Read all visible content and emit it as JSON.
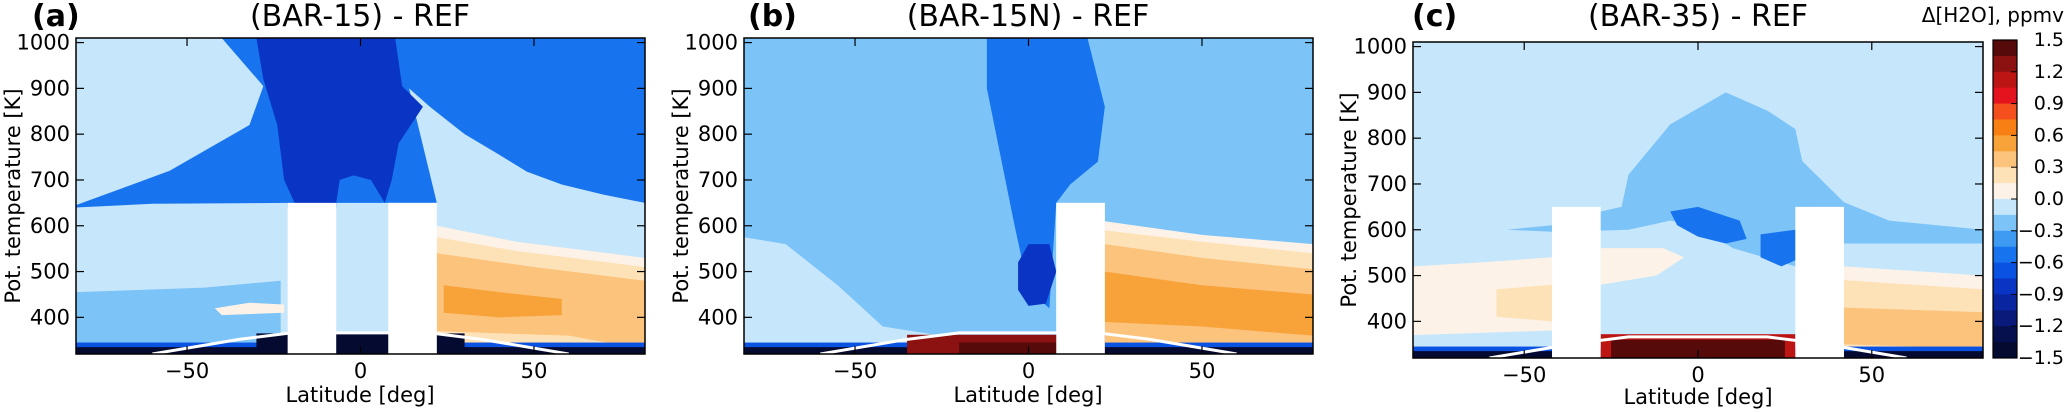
{
  "chart_data": [
    {
      "type": "heatmap",
      "letter": "(a)",
      "title": "(BAR-15) - REF",
      "xlabel": "Latitude [deg]",
      "ylabel": "Pot. temperature [K]",
      "xlim": [
        -82,
        82
      ],
      "ylim": [
        320,
        1010
      ],
      "xticks": [
        -50,
        0,
        50
      ],
      "xticklabels": [
        "−50",
        "0",
        "50"
      ],
      "yticks": [
        400,
        500,
        600,
        700,
        800,
        900,
        1000
      ],
      "yticklabels": [
        "400",
        "500",
        "600",
        "700",
        "800",
        "900",
        "1000"
      ],
      "masked_regions": [
        {
          "lat": [
            -21,
            -7
          ],
          "theta_max": 650
        },
        {
          "lat": [
            8,
            22
          ],
          "theta_max": 650
        }
      ],
      "contours": [
        {
          "level": -0.3,
          "points": [
            [
              -82,
              455
            ],
            [
              -45,
              465
            ],
            [
              -23,
              480
            ],
            [
              -23,
              320
            ],
            [
              -82,
              320
            ]
          ]
        },
        {
          "level": -0.3,
          "points": [
            [
              22,
              520
            ],
            [
              45,
              505
            ],
            [
              65,
              495
            ],
            [
              82,
              488
            ],
            [
              82,
              320
            ],
            [
              22,
              320
            ]
          ]
        },
        {
          "level": -0.6,
          "points": [
            [
              -82,
              645
            ],
            [
              -55,
              720
            ],
            [
              -32,
              820
            ],
            [
              -28,
              905
            ],
            [
              -40,
              1010
            ],
            [
              82,
              1010
            ],
            [
              82,
              650
            ],
            [
              70,
              668
            ],
            [
              58,
              690
            ],
            [
              48,
              718
            ],
            [
              40,
              755
            ],
            [
              30,
              800
            ],
            [
              20,
              860
            ],
            [
              14,
              900
            ],
            [
              22,
              650
            ],
            [
              -7,
              650
            ],
            [
              -7,
              640
            ],
            [
              -21,
              640
            ],
            [
              -21,
              650
            ],
            [
              -60,
              648
            ],
            [
              -82,
              640
            ]
          ]
        },
        {
          "level": -0.9,
          "points": [
            [
              -30,
              1010
            ],
            [
              -28,
              920
            ],
            [
              -24,
              820
            ],
            [
              -22,
              700
            ],
            [
              -19,
              650
            ],
            [
              -7,
              650
            ],
            [
              -6,
              700
            ],
            [
              -2,
              710
            ],
            [
              3,
              700
            ],
            [
              7,
              650
            ],
            [
              9,
              700
            ],
            [
              11,
              780
            ],
            [
              18,
              860
            ],
            [
              12,
              905
            ],
            [
              10,
              1010
            ]
          ]
        }
      ],
      "positive_contours": [
        {
          "level": 0.0,
          "points": [
            [
              22,
              600
            ],
            [
              45,
              565
            ],
            [
              82,
              530
            ],
            [
              82,
              320
            ],
            [
              22,
              320
            ]
          ]
        },
        {
          "level": 0.15,
          "points": [
            [
              22,
              575
            ],
            [
              45,
              545
            ],
            [
              82,
              510
            ],
            [
              82,
              320
            ],
            [
              22,
              320
            ]
          ]
        },
        {
          "level": 0.3,
          "points": [
            [
              22,
              540
            ],
            [
              50,
              510
            ],
            [
              82,
              480
            ],
            [
              82,
              330
            ],
            [
              60,
              360
            ],
            [
              22,
              370
            ]
          ]
        },
        {
          "level": 0.45,
          "points": [
            [
              24,
              470
            ],
            [
              40,
              455
            ],
            [
              58,
              440
            ],
            [
              58,
              405
            ],
            [
              40,
              400
            ],
            [
              24,
              410
            ]
          ]
        },
        {
          "level": 0.0,
          "points": [
            [
              -42,
              420
            ],
            [
              -32,
              432
            ],
            [
              -22,
              428
            ],
            [
              -22,
              410
            ],
            [
              -40,
              405
            ]
          ]
        }
      ],
      "surface": "dark-blue",
      "colors": {
        "background": "#c6e6fb"
      }
    },
    {
      "type": "heatmap",
      "letter": "(b)",
      "title": "(BAR-15N) - REF",
      "xlabel": "Latitude [deg]",
      "ylabel": "Pot. temperature [K]",
      "xlim": [
        -82,
        82
      ],
      "ylim": [
        320,
        1010
      ],
      "xticks": [
        -50,
        0,
        50
      ],
      "xticklabels": [
        "−50",
        "0",
        "50"
      ],
      "yticks": [
        400,
        500,
        600,
        700,
        800,
        900,
        1000
      ],
      "yticklabels": [
        "400",
        "500",
        "600",
        "700",
        "800",
        "900",
        "1000"
      ],
      "masked_regions": [
        {
          "lat": [
            8,
            22
          ],
          "theta_max": 650
        }
      ],
      "contours": [
        {
          "level": -0.3,
          "points": [
            [
              -82,
              575
            ],
            [
              -70,
              560
            ],
            [
              -55,
              470
            ],
            [
              -42,
              380
            ],
            [
              -25,
              360
            ],
            [
              8,
              360
            ],
            [
              8,
              650
            ],
            [
              22,
              650
            ],
            [
              22,
              565
            ],
            [
              45,
              560
            ],
            [
              82,
              545
            ],
            [
              82,
              1010
            ],
            [
              -82,
              1010
            ]
          ]
        },
        {
          "level": -0.6,
          "points": [
            [
              -12,
              1010
            ],
            [
              -12,
              900
            ],
            [
              -8,
              750
            ],
            [
              -4,
              600
            ],
            [
              0,
              460
            ],
            [
              6,
              420
            ],
            [
              8,
              650
            ],
            [
              12,
              690
            ],
            [
              20,
              740
            ],
            [
              22,
              860
            ],
            [
              17,
              1010
            ]
          ]
        },
        {
          "level": -0.9,
          "points": [
            [
              -3,
              520
            ],
            [
              0,
              560
            ],
            [
              6,
              560
            ],
            [
              8,
              500
            ],
            [
              5,
              430
            ],
            [
              0,
              425
            ],
            [
              -3,
              460
            ]
          ]
        }
      ],
      "positive_contours": [
        {
          "level": 0.0,
          "points": [
            [
              22,
              610
            ],
            [
              50,
              580
            ],
            [
              82,
              560
            ],
            [
              82,
              320
            ],
            [
              22,
              320
            ]
          ]
        },
        {
          "level": 0.15,
          "points": [
            [
              22,
              590
            ],
            [
              50,
              565
            ],
            [
              82,
              540
            ],
            [
              82,
              320
            ],
            [
              22,
              320
            ]
          ]
        },
        {
          "level": 0.3,
          "points": [
            [
              22,
              560
            ],
            [
              50,
              530
            ],
            [
              82,
              505
            ],
            [
              82,
              330
            ],
            [
              22,
              330
            ]
          ]
        },
        {
          "level": 0.45,
          "points": [
            [
              22,
              500
            ],
            [
              50,
              470
            ],
            [
              82,
              450
            ],
            [
              82,
              360
            ],
            [
              50,
              380
            ],
            [
              22,
              390
            ]
          ]
        }
      ],
      "surface": "dark-red-equator",
      "colors": {
        "background": "#c6e6fb"
      }
    },
    {
      "type": "heatmap",
      "letter": "(c)",
      "title": "(BAR-35) - REF",
      "xlabel": "Latitude [deg]",
      "ylabel": "Pot. temperature [K]",
      "xlim": [
        -82,
        82
      ],
      "ylim": [
        320,
        1010
      ],
      "xticks": [
        -50,
        0,
        50
      ],
      "xticklabels": [
        "−50",
        "0",
        "50"
      ],
      "yticks": [
        400,
        500,
        600,
        700,
        800,
        900,
        1000
      ],
      "yticklabels": [
        "400",
        "500",
        "600",
        "700",
        "800",
        "900",
        "1000"
      ],
      "masked_regions": [
        {
          "lat": [
            -42,
            -28
          ],
          "theta_max": 650
        },
        {
          "lat": [
            28,
            42
          ],
          "theta_max": 650
        }
      ],
      "contours": [
        {
          "level": -0.3,
          "points": [
            [
              -55,
              600
            ],
            [
              -42,
              610
            ],
            [
              -28,
              640
            ],
            [
              -22,
              650
            ],
            [
              -20,
              720
            ],
            [
              -8,
              830
            ],
            [
              8,
              900
            ],
            [
              20,
              860
            ],
            [
              28,
              820
            ],
            [
              30,
              750
            ],
            [
              42,
              660
            ],
            [
              55,
              620
            ],
            [
              82,
              600
            ],
            [
              82,
              570
            ],
            [
              42,
              570
            ],
            [
              28,
              520
            ],
            [
              10,
              560
            ],
            [
              0,
              610
            ],
            [
              -8,
              620
            ],
            [
              -20,
              600
            ],
            [
              -40,
              595
            ]
          ]
        },
        {
          "level": -0.6,
          "points": [
            [
              -8,
              640
            ],
            [
              0,
              650
            ],
            [
              12,
              620
            ],
            [
              14,
              580
            ],
            [
              8,
              570
            ],
            [
              0,
              585
            ],
            [
              -6,
              610
            ]
          ]
        },
        {
          "level": -0.6,
          "points": [
            [
              18,
              590
            ],
            [
              28,
              600
            ],
            [
              30,
              540
            ],
            [
              24,
              520
            ],
            [
              18,
              540
            ]
          ]
        }
      ],
      "positive_contours": [
        {
          "level": 0.0,
          "points": [
            [
              -82,
              520
            ],
            [
              -60,
              530
            ],
            [
              -42,
              540
            ],
            [
              -42,
              380
            ],
            [
              -82,
              370
            ]
          ]
        },
        {
          "level": 0.0,
          "points": [
            [
              -28,
              560
            ],
            [
              -10,
              560
            ],
            [
              -4,
              540
            ],
            [
              -12,
              500
            ],
            [
              -28,
              480
            ]
          ]
        },
        {
          "level": 0.15,
          "points": [
            [
              -58,
              470
            ],
            [
              -42,
              480
            ],
            [
              -42,
              400
            ],
            [
              -58,
              410
            ]
          ]
        },
        {
          "level": 0.0,
          "points": [
            [
              42,
              520
            ],
            [
              82,
              500
            ],
            [
              82,
              330
            ],
            [
              42,
              330
            ]
          ]
        },
        {
          "level": 0.15,
          "points": [
            [
              42,
              490
            ],
            [
              82,
              470
            ],
            [
              82,
              335
            ],
            [
              42,
              345
            ]
          ]
        },
        {
          "level": 0.3,
          "points": [
            [
              42,
              430
            ],
            [
              82,
              420
            ],
            [
              82,
              340
            ],
            [
              42,
              350
            ]
          ]
        }
      ],
      "surface": "dark-red-equator-wide",
      "colors": {
        "background": "#c6e6fb"
      }
    }
  ],
  "colorbar": {
    "title": "Δ[H2O], ppmv",
    "ticks": [
      "1.5",
      "1.2",
      "0.9",
      "0.6",
      "0.3",
      "0.0",
      "−0.3",
      "−0.6",
      "−0.9",
      "−1.2",
      "−1.5"
    ],
    "bands": [
      {
        "level": 1.35,
        "color": "#560a0a"
      },
      {
        "level": 1.2,
        "color": "#8c1212"
      },
      {
        "level": 1.05,
        "color": "#bd1414"
      },
      {
        "level": 0.9,
        "color": "#e4141e"
      },
      {
        "level": 0.75,
        "color": "#f4501e"
      },
      {
        "level": 0.6,
        "color": "#f77f14"
      },
      {
        "level": 0.45,
        "color": "#f8a23a"
      },
      {
        "level": 0.3,
        "color": "#fcc37c"
      },
      {
        "level": 0.15,
        "color": "#fde2b8"
      },
      {
        "level": 0.0,
        "color": "#fdf2e8"
      },
      {
        "level": -0.15,
        "color": "#c6e6fb"
      },
      {
        "level": -0.3,
        "color": "#7cc3f7"
      },
      {
        "level": -0.45,
        "color": "#3f9bf2"
      },
      {
        "level": -0.6,
        "color": "#1874ee"
      },
      {
        "level": -0.75,
        "color": "#0a52e2"
      },
      {
        "level": -0.9,
        "color": "#0a35c4"
      },
      {
        "level": -1.05,
        "color": "#0a25a0"
      },
      {
        "level": -1.2,
        "color": "#091a7a"
      },
      {
        "level": -1.35,
        "color": "#07104f"
      },
      {
        "level": -1.5,
        "color": "#050a30"
      }
    ]
  }
}
